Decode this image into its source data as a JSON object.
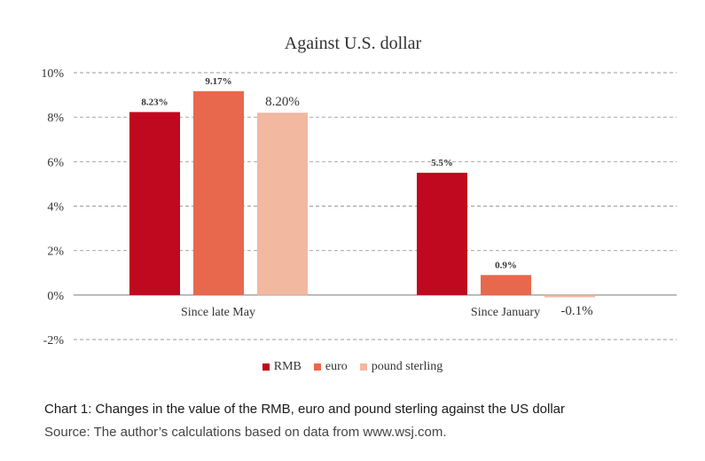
{
  "chart_data": {
    "type": "bar",
    "title": "Against U.S. dollar",
    "categories": [
      "Since late May",
      "Since January"
    ],
    "series": [
      {
        "name": "RMB",
        "values": [
          8.23,
          5.5
        ],
        "labels": [
          "8.23%",
          "5.5%"
        ],
        "color": "#c0081e"
      },
      {
        "name": "euro",
        "values": [
          9.17,
          0.9
        ],
        "labels": [
          "9.17%",
          "0.9%"
        ],
        "color": "#e8684d"
      },
      {
        "name": "pound sterling",
        "values": [
          8.2,
          -0.1
        ],
        "labels": [
          "8.20%",
          "-0.1%"
        ],
        "color": "#f2b8a0"
      }
    ],
    "ylim": [
      -2,
      10
    ],
    "yticks": [
      -2,
      0,
      2,
      4,
      6,
      8,
      10
    ],
    "ytick_labels": [
      "-2%",
      "0%",
      "2%",
      "4%",
      "6%",
      "8%",
      "10%"
    ],
    "xlabel": "",
    "ylabel": "",
    "grid": true,
    "legend": "bottom"
  },
  "caption": {
    "title": "Chart 1: Changes in the value of the RMB, euro and pound sterling against the US dollar",
    "source": "Source: The author’s calculations based on data from www.wsj.com."
  }
}
